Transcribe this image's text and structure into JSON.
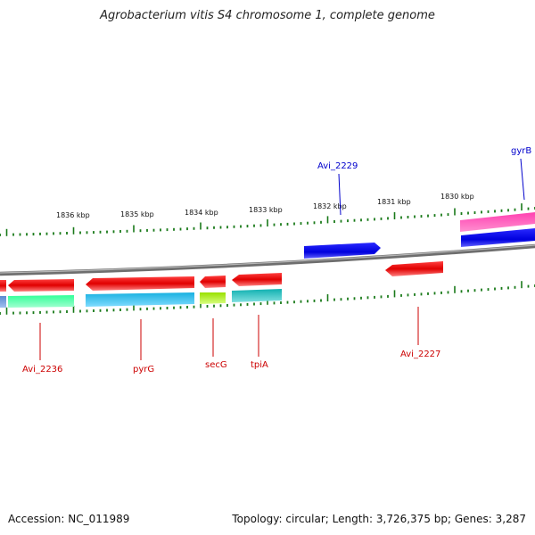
{
  "title": "Agrobacterium vitis S4 chromosome 1, complete genome",
  "footer": {
    "accession": "Accession: NC_011989",
    "summary": "Topology: circular; Length: 3,726,375 bp; Genes: 3,287"
  },
  "colors": {
    "tick": "#1a7a1a",
    "backbone": "#8a8a8a",
    "label_red": "#cc0000",
    "label_blue": "#0000cc"
  },
  "scale": {
    "labels": [
      "1836 kbp",
      "1835 kbp",
      "1834 kbp",
      "1833 kbp",
      "1832 kbp",
      "1831 kbp",
      "1830 kbp"
    ]
  },
  "genes": [
    {
      "name": "Avi_2236",
      "color": "#cc0000"
    },
    {
      "name": "pyrG",
      "color": "#cc0000"
    },
    {
      "name": "secG",
      "color": "#cc0000"
    },
    {
      "name": "tpiA",
      "color": "#cc0000"
    },
    {
      "name": "Avi_2227",
      "color": "#cc0000"
    },
    {
      "name": "Avi_2229",
      "color": "#0000cc"
    },
    {
      "name": "gyrB",
      "color": "#0000cc"
    }
  ]
}
